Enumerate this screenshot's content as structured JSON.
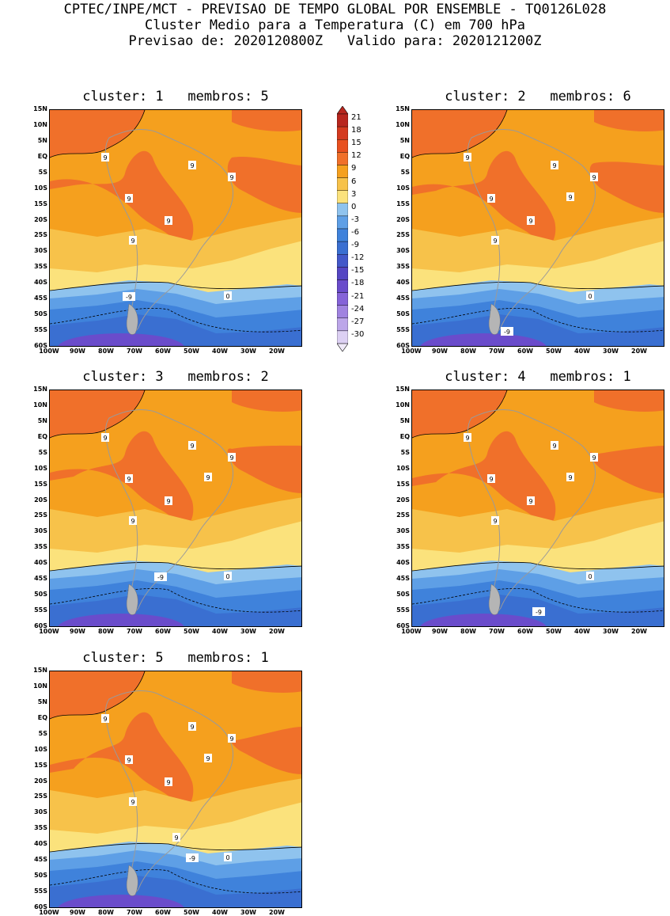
{
  "header": {
    "line1": "CPTEC/INPE/MCT - PREVISAO DE TEMPO GLOBAL POR ENSEMBLE - TQ0126L028",
    "line2": "Cluster Medio para a Temperatura (C) em 700 hPa",
    "line3": "Previsao de: 2020120800Z   Valido para: 2020121200Z"
  },
  "axes": {
    "lat_labels": [
      "15N",
      "10N",
      "5N",
      "EQ",
      "5S",
      "10S",
      "15S",
      "20S",
      "25S",
      "30S",
      "35S",
      "40S",
      "45S",
      "50S",
      "55S",
      "60S"
    ],
    "lon_labels": [
      "100W",
      "90W",
      "80W",
      "70W",
      "60W",
      "50W",
      "40W",
      "30W",
      "20W"
    ]
  },
  "colorbar": {
    "levels": [
      "21",
      "18",
      "15",
      "12",
      "9",
      "6",
      "3",
      "0",
      "-3",
      "-6",
      "-9",
      "-12",
      "-15",
      "-18",
      "-21",
      "-24",
      "-27",
      "-30"
    ],
    "colors": [
      "#b8261e",
      "#d43a1f",
      "#e8501f",
      "#f0702a",
      "#f5a01e",
      "#f7c24a",
      "#fbe27c",
      "#8fc3ee",
      "#5e9fe6",
      "#3f82db",
      "#3a6fd1",
      "#4358c9",
      "#5546c3",
      "#6a4ccb",
      "#8563d8",
      "#a083e0",
      "#bca6e9",
      "#dcd0f3"
    ]
  },
  "panels": [
    {
      "title": "cluster: 1   membros: 5",
      "contour_labels": [
        "9",
        "9",
        "9",
        "9",
        "9",
        "9",
        "0",
        "-9"
      ]
    },
    {
      "title": "cluster: 2   membros: 6",
      "contour_labels": [
        "9",
        "9",
        "9",
        "9",
        "9",
        "9",
        "9",
        "0",
        "-9"
      ]
    },
    {
      "title": "cluster: 3   membros: 2",
      "contour_labels": [
        "9",
        "9",
        "9",
        "9",
        "9",
        "9",
        "9",
        "0",
        "-9"
      ]
    },
    {
      "title": "cluster: 4   membros: 1",
      "contour_labels": [
        "9",
        "9",
        "9",
        "9",
        "9",
        "9",
        "9",
        "0",
        "-9"
      ]
    },
    {
      "title": "cluster: 5   membros: 1",
      "contour_labels": [
        "9",
        "9",
        "9",
        "9",
        "9",
        "9",
        "9",
        "9",
        "0",
        "-9"
      ]
    }
  ]
}
